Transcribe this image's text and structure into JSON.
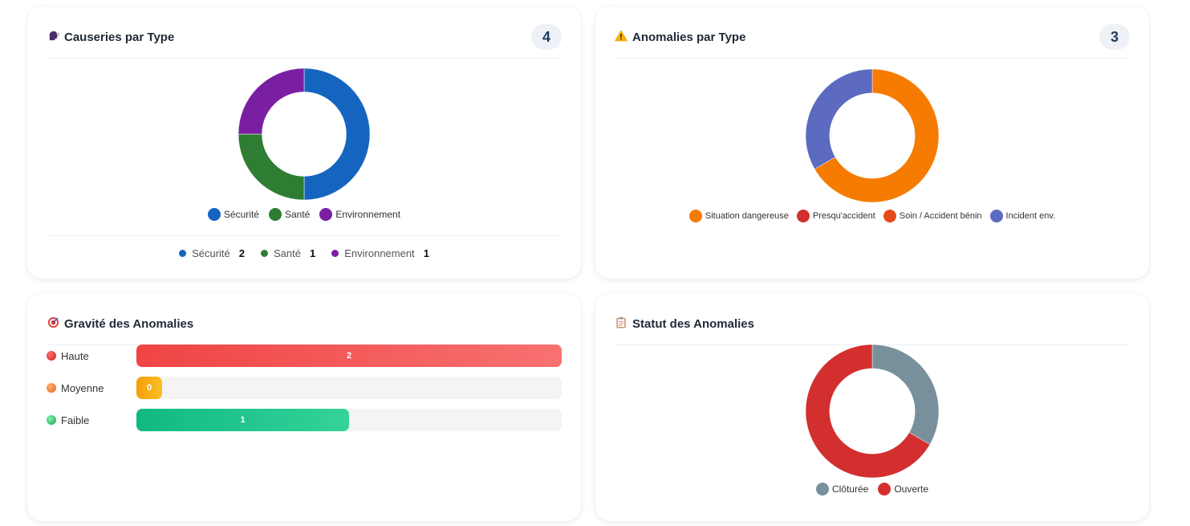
{
  "causeries": {
    "title": "Causeries par Type",
    "icon": "speaking-head-icon",
    "count": "4",
    "legend": [
      {
        "label": "Sécurité",
        "color": "#1565c0"
      },
      {
        "label": "Santé",
        "color": "#2e7d32"
      },
      {
        "label": "Environnement",
        "color": "#7b1fa2"
      }
    ],
    "summary": [
      {
        "label": "Sécurité",
        "value": "2",
        "color": "#1565c0"
      },
      {
        "label": "Santé",
        "value": "1",
        "color": "#2e7d32"
      },
      {
        "label": "Environnement",
        "value": "1",
        "color": "#7b1fa2"
      }
    ]
  },
  "anomalies_type": {
    "title": "Anomalies par Type",
    "icon": "warning-icon",
    "count": "3",
    "legend": [
      {
        "label": "Situation dangereuse",
        "color": "#f57c00"
      },
      {
        "label": "Presqu'accident",
        "color": "#d32f2f"
      },
      {
        "label": "Soin / Accident bénin",
        "color": "#e64a19"
      },
      {
        "label": "Incident env.",
        "color": "#5c6bc0"
      }
    ]
  },
  "gravite": {
    "title": "Gravité des Anomalies",
    "icon": "target-icon",
    "rows": [
      {
        "label": "Haute",
        "display": "2"
      },
      {
        "label": "Moyenne",
        "display": "0"
      },
      {
        "label": "Faible",
        "display": "1"
      }
    ]
  },
  "statut": {
    "title": "Statut des Anomalies",
    "icon": "clipboard-icon",
    "legend": [
      {
        "label": "Clôturée",
        "color": "#78909c"
      },
      {
        "label": "Ouverte",
        "color": "#d32f2f"
      }
    ]
  },
  "chart_data": [
    {
      "type": "pie",
      "title": "Causeries par Type",
      "categories": [
        "Sécurité",
        "Santé",
        "Environnement"
      ],
      "values": [
        2,
        1,
        1
      ],
      "colors": [
        "#1565c0",
        "#2e7d32",
        "#7b1fa2"
      ],
      "donut": true,
      "legend": "bottom"
    },
    {
      "type": "pie",
      "title": "Anomalies par Type",
      "categories": [
        "Situation dangereuse",
        "Presqu'accident",
        "Soin / Accident bénin",
        "Incident env."
      ],
      "values": [
        2,
        0,
        0,
        1
      ],
      "colors": [
        "#f57c00",
        "#d32f2f",
        "#e64a19",
        "#5c6bc0"
      ],
      "donut": true,
      "legend": "bottom"
    },
    {
      "type": "bar",
      "orientation": "horizontal",
      "title": "Gravité des Anomalies",
      "categories": [
        "Haute",
        "Moyenne",
        "Faible"
      ],
      "values": [
        2,
        0,
        1
      ],
      "xlim": [
        0,
        2
      ],
      "colors": [
        "#ef4444",
        "#f59e0b",
        "#10b981"
      ]
    },
    {
      "type": "pie",
      "title": "Statut des Anomalies",
      "categories": [
        "Clôturée",
        "Ouverte"
      ],
      "values": [
        1,
        2
      ],
      "colors": [
        "#78909c",
        "#d32f2f"
      ],
      "donut": true,
      "legend": "bottom"
    }
  ]
}
